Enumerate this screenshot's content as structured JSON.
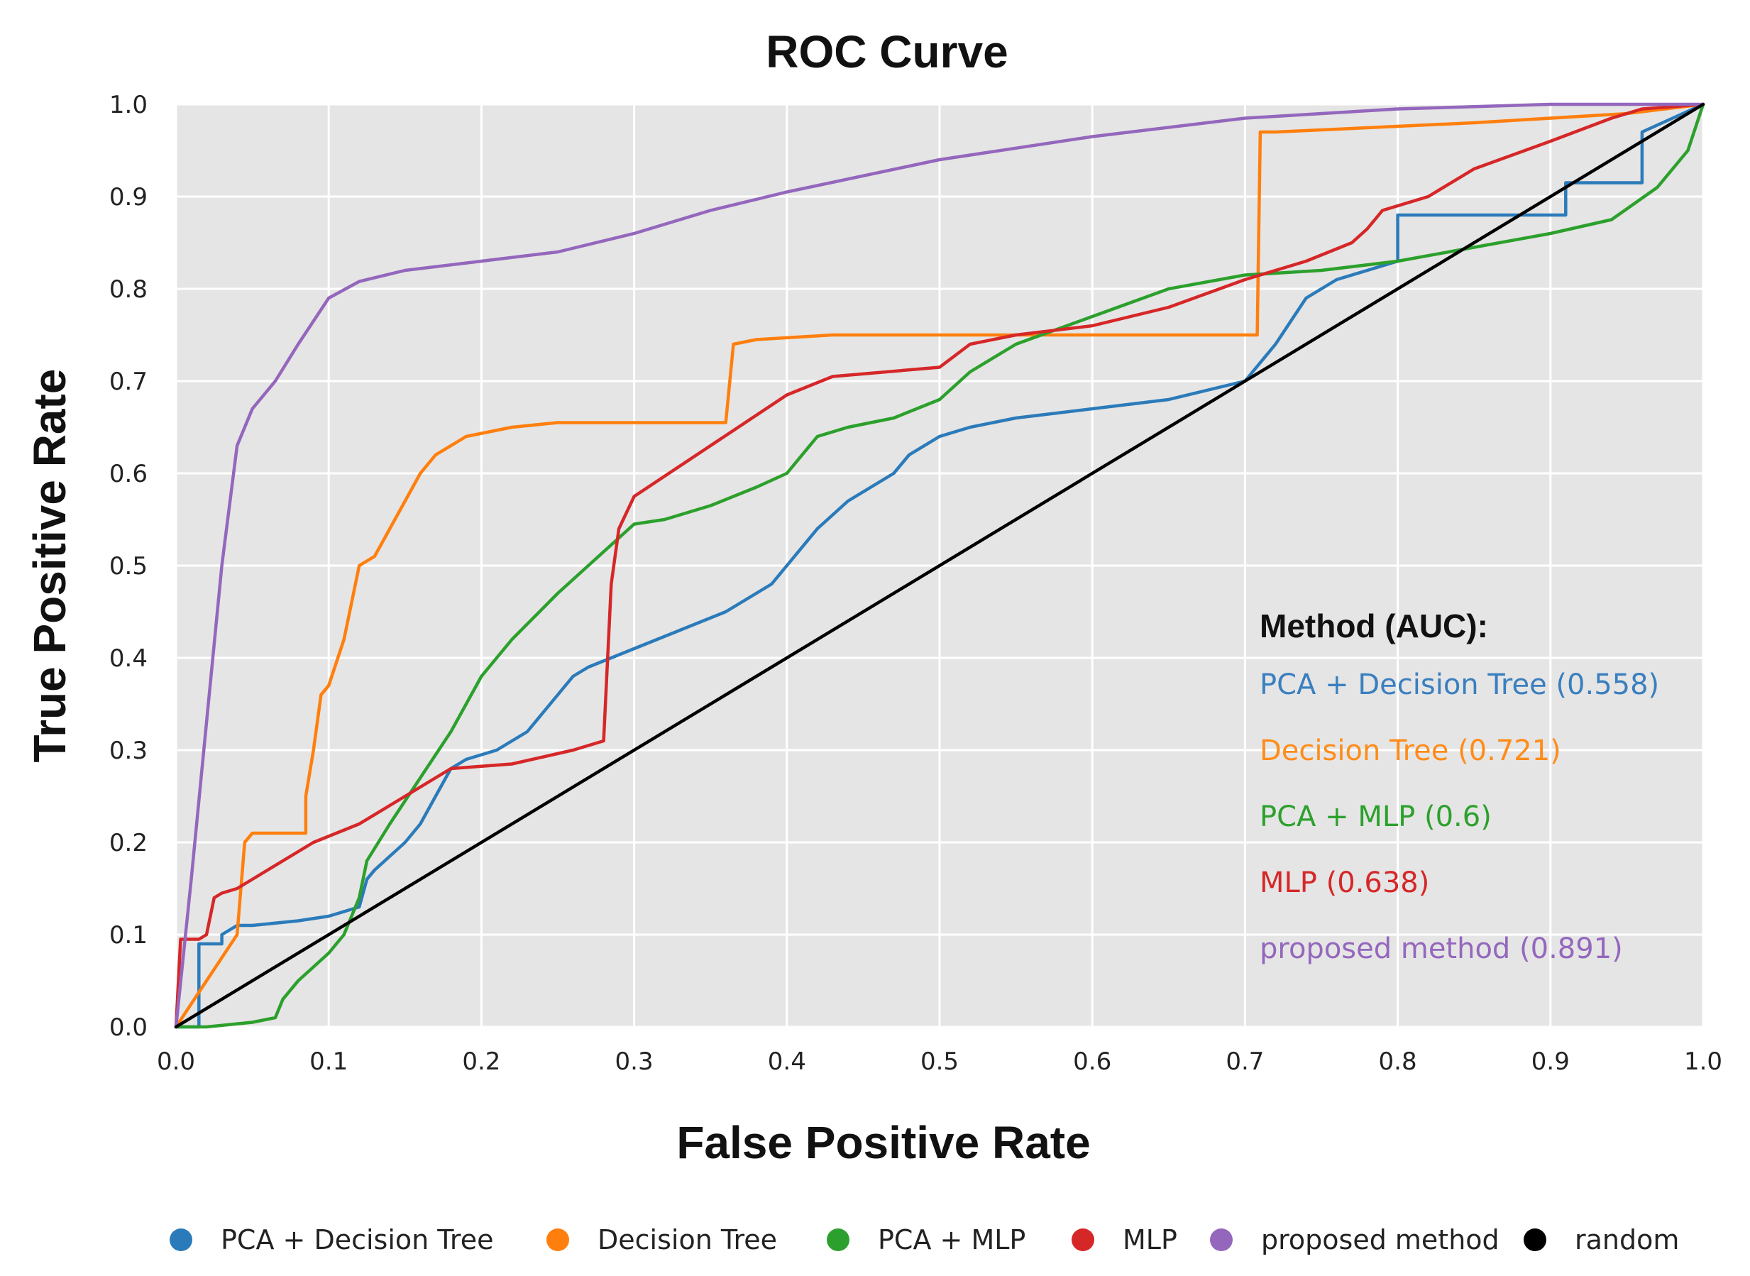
{
  "chart_data": {
    "type": "line",
    "title": "ROC Curve",
    "xlabel": "False Positive Rate",
    "ylabel": "True Positive Rate",
    "xlim": [
      0,
      1
    ],
    "ylim": [
      0,
      1
    ],
    "x_ticks": [
      "0.0",
      "0.1",
      "0.2",
      "0.3",
      "0.4",
      "0.5",
      "0.6",
      "0.7",
      "0.8",
      "0.9",
      "1.0"
    ],
    "y_ticks": [
      "0.0",
      "0.1",
      "0.2",
      "0.3",
      "0.4",
      "0.5",
      "0.6",
      "0.7",
      "0.8",
      "0.9",
      "1.0"
    ],
    "grid": true,
    "background": "#e5e5e5",
    "annotation": {
      "heading": "Method (AUC):",
      "entries": [
        {
          "text": "PCA + Decision Tree (0.558)",
          "color": "#3a7fbf"
        },
        {
          "text": "Decision Tree (0.721)",
          "color": "#ff8c1a"
        },
        {
          "text": "PCA + MLP (0.6)",
          "color": "#2ca02c"
        },
        {
          "text": "MLP (0.638)",
          "color": "#d62728"
        },
        {
          "text": "proposed method (0.891)",
          "color": "#9467bd"
        }
      ]
    },
    "legend_position": "bottom",
    "series": [
      {
        "name": "PCA + Decision Tree",
        "color": "#2b7bba",
        "x": [
          0,
          0.015,
          0.015,
          0.03,
          0.03,
          0.04,
          0.05,
          0.08,
          0.1,
          0.11,
          0.12,
          0.125,
          0.13,
          0.15,
          0.16,
          0.17,
          0.18,
          0.19,
          0.21,
          0.23,
          0.25,
          0.26,
          0.27,
          0.3,
          0.33,
          0.36,
          0.39,
          0.4,
          0.42,
          0.44,
          0.45,
          0.47,
          0.48,
          0.5,
          0.52,
          0.55,
          0.6,
          0.65,
          0.7,
          0.72,
          0.74,
          0.76,
          0.78,
          0.8,
          0.8,
          0.88,
          0.88,
          0.91,
          0.91,
          0.96,
          0.96,
          1.0
        ],
        "y": [
          0,
          0,
          0.09,
          0.09,
          0.1,
          0.11,
          0.11,
          0.115,
          0.12,
          0.125,
          0.13,
          0.16,
          0.17,
          0.2,
          0.22,
          0.25,
          0.28,
          0.29,
          0.3,
          0.32,
          0.36,
          0.38,
          0.39,
          0.41,
          0.43,
          0.45,
          0.48,
          0.5,
          0.54,
          0.57,
          0.58,
          0.6,
          0.62,
          0.64,
          0.65,
          0.66,
          0.67,
          0.68,
          0.7,
          0.74,
          0.79,
          0.81,
          0.82,
          0.83,
          0.88,
          0.88,
          0.88,
          0.88,
          0.915,
          0.915,
          0.97,
          1.0
        ]
      },
      {
        "name": "Decision Tree",
        "color": "#ff7f0e",
        "x": [
          0,
          0.04,
          0.045,
          0.05,
          0.085,
          0.085,
          0.09,
          0.095,
          0.1,
          0.11,
          0.115,
          0.12,
          0.13,
          0.15,
          0.16,
          0.17,
          0.19,
          0.22,
          0.25,
          0.36,
          0.365,
          0.38,
          0.43,
          0.5,
          0.7,
          0.708,
          0.71,
          0.72,
          0.85,
          0.95,
          1.0
        ],
        "y": [
          0,
          0.1,
          0.2,
          0.21,
          0.21,
          0.25,
          0.3,
          0.36,
          0.37,
          0.42,
          0.46,
          0.5,
          0.51,
          0.57,
          0.6,
          0.62,
          0.64,
          0.65,
          0.655,
          0.655,
          0.74,
          0.745,
          0.75,
          0.75,
          0.75,
          0.75,
          0.97,
          0.97,
          0.98,
          0.99,
          1.0
        ]
      },
      {
        "name": "PCA + MLP",
        "color": "#2ca02c",
        "x": [
          0,
          0.02,
          0.05,
          0.065,
          0.07,
          0.08,
          0.1,
          0.11,
          0.12,
          0.125,
          0.14,
          0.16,
          0.18,
          0.2,
          0.22,
          0.25,
          0.27,
          0.29,
          0.3,
          0.32,
          0.35,
          0.38,
          0.4,
          0.42,
          0.44,
          0.47,
          0.5,
          0.52,
          0.55,
          0.6,
          0.65,
          0.7,
          0.75,
          0.8,
          0.85,
          0.9,
          0.94,
          0.97,
          0.99,
          1.0
        ],
        "y": [
          0,
          0,
          0.005,
          0.01,
          0.03,
          0.05,
          0.08,
          0.1,
          0.14,
          0.18,
          0.22,
          0.27,
          0.32,
          0.38,
          0.42,
          0.47,
          0.5,
          0.53,
          0.545,
          0.55,
          0.565,
          0.585,
          0.6,
          0.64,
          0.65,
          0.66,
          0.68,
          0.71,
          0.74,
          0.77,
          0.8,
          0.815,
          0.82,
          0.83,
          0.845,
          0.86,
          0.875,
          0.91,
          0.95,
          1.0
        ]
      },
      {
        "name": "MLP",
        "color": "#d62728",
        "x": [
          0,
          0.003,
          0.008,
          0.015,
          0.02,
          0.025,
          0.03,
          0.04,
          0.06,
          0.09,
          0.12,
          0.15,
          0.17,
          0.18,
          0.22,
          0.26,
          0.28,
          0.285,
          0.29,
          0.3,
          0.35,
          0.4,
          0.43,
          0.5,
          0.52,
          0.55,
          0.6,
          0.65,
          0.7,
          0.74,
          0.77,
          0.78,
          0.79,
          0.82,
          0.85,
          0.9,
          0.94,
          0.96,
          1.0
        ],
        "y": [
          0,
          0.095,
          0.095,
          0.095,
          0.1,
          0.14,
          0.145,
          0.15,
          0.17,
          0.2,
          0.22,
          0.25,
          0.27,
          0.28,
          0.285,
          0.3,
          0.31,
          0.48,
          0.54,
          0.575,
          0.63,
          0.685,
          0.705,
          0.715,
          0.74,
          0.75,
          0.76,
          0.78,
          0.81,
          0.83,
          0.85,
          0.865,
          0.885,
          0.9,
          0.93,
          0.96,
          0.985,
          0.995,
          1.0
        ]
      },
      {
        "name": "proposed method",
        "color": "#9467bd",
        "x": [
          0,
          0.01,
          0.02,
          0.03,
          0.04,
          0.05,
          0.065,
          0.08,
          0.1,
          0.12,
          0.15,
          0.2,
          0.25,
          0.3,
          0.35,
          0.4,
          0.5,
          0.6,
          0.7,
          0.8,
          0.9,
          1.0
        ],
        "y": [
          0,
          0.16,
          0.33,
          0.5,
          0.63,
          0.67,
          0.7,
          0.74,
          0.79,
          0.808,
          0.82,
          0.83,
          0.84,
          0.86,
          0.885,
          0.905,
          0.94,
          0.965,
          0.985,
          0.995,
          1.0,
          1.0
        ]
      },
      {
        "name": "random",
        "color": "#000000",
        "x": [
          0,
          1
        ],
        "y": [
          0,
          1
        ]
      }
    ]
  }
}
